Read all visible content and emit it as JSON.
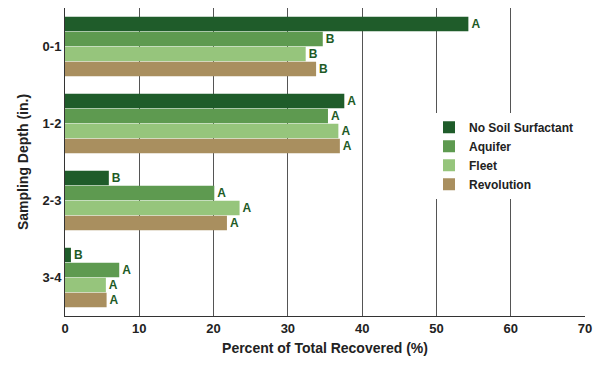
{
  "chart_data": {
    "type": "bar",
    "orientation": "horizontal",
    "xlabel": "Percent of Total Recovered (%)",
    "ylabel": "Sampling Depth (in.)",
    "categories": [
      "0-1",
      "1-2",
      "2-3",
      "3-4"
    ],
    "series": [
      {
        "name": "No Soil Surfactant",
        "color": "#1f5c2a",
        "values": [
          54.3,
          37.6,
          5.9,
          0.8
        ],
        "annotations": [
          "A",
          "A",
          "B",
          "B"
        ]
      },
      {
        "name": "Aquifer",
        "color": "#5e9a50",
        "values": [
          34.7,
          35.4,
          20.1,
          7.3
        ],
        "annotations": [
          "B",
          "A",
          "A",
          "A"
        ]
      },
      {
        "name": "Fleet",
        "color": "#96c57c",
        "values": [
          32.4,
          36.8,
          23.5,
          5.5
        ],
        "annotations": [
          "B",
          "A",
          "A",
          "A"
        ]
      },
      {
        "name": "Revolution",
        "color": "#a98f5f",
        "values": [
          33.8,
          37.0,
          21.8,
          5.6
        ],
        "annotations": [
          "B",
          "A",
          "A",
          "A"
        ]
      }
    ],
    "xlim": [
      0,
      70
    ],
    "xticks": [
      0,
      10,
      20,
      30,
      40,
      50,
      60,
      70
    ],
    "grid": true,
    "legend": "right"
  }
}
